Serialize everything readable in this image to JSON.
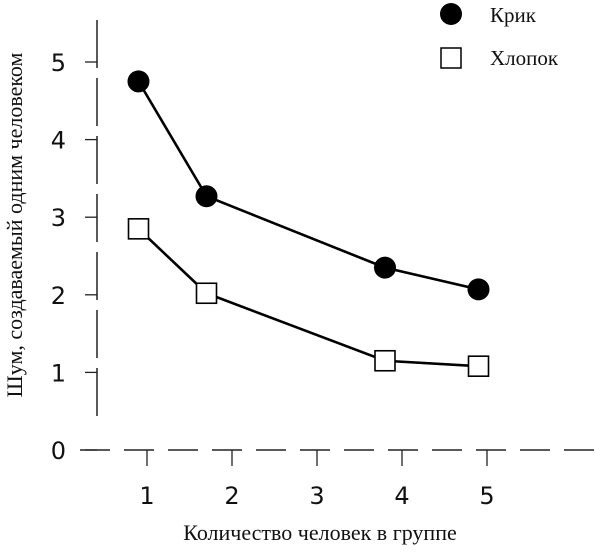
{
  "chart_data": {
    "type": "line",
    "x": [
      1,
      2,
      3,
      4,
      5
    ],
    "xlabel": "Количество человек в группе",
    "ylabel": "Шум, создаваемый одним человеком",
    "xlim": [
      0.5,
      5.8
    ],
    "ylim": [
      0,
      5.5
    ],
    "yticks": [
      0,
      1,
      2,
      3,
      4,
      5
    ],
    "grid": false,
    "legend_position": "top-right",
    "series": [
      {
        "name": "Крик",
        "marker": "filled-circle",
        "color": "#000000",
        "points": [
          [
            0.9,
            4.75
          ],
          [
            1.7,
            3.27
          ],
          [
            3.8,
            2.35
          ],
          [
            4.9,
            2.07
          ]
        ]
      },
      {
        "name": "Хлопок",
        "marker": "open-square",
        "color": "#000000",
        "points": [
          [
            0.9,
            2.85
          ],
          [
            1.7,
            2.02
          ],
          [
            3.8,
            1.15
          ],
          [
            4.9,
            1.08
          ]
        ]
      }
    ]
  }
}
